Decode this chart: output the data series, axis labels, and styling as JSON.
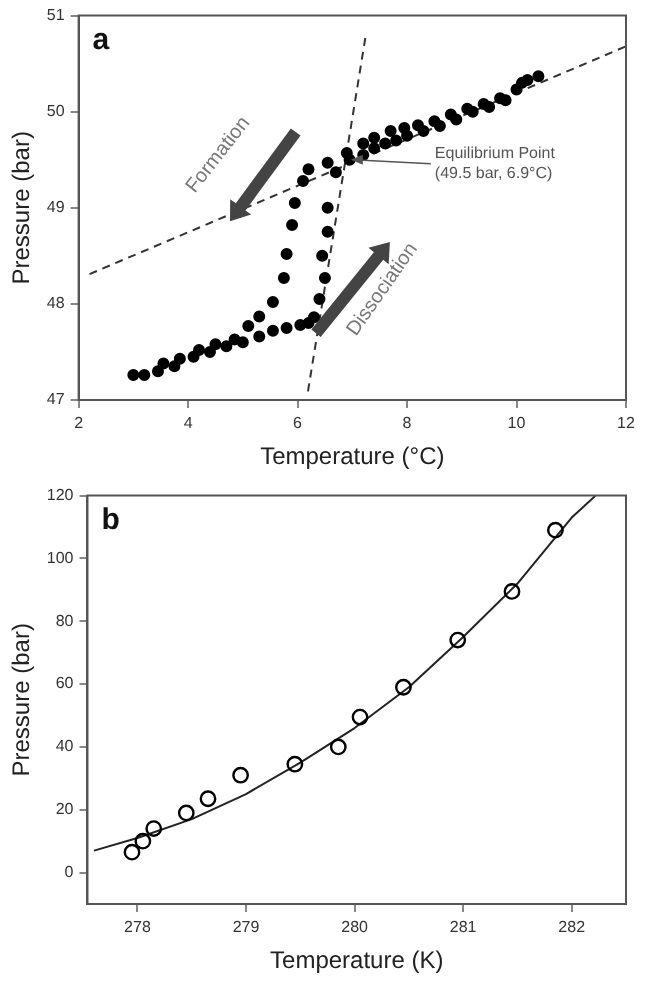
{
  "chart_data": [
    {
      "type": "scatter",
      "title": "a",
      "xlabel": "Temperature (°C)",
      "ylabel": "Pressure (bar)",
      "xlim": [
        2,
        12
      ],
      "ylim": [
        47,
        51
      ],
      "xticks": [
        2,
        4,
        6,
        8,
        10,
        12
      ],
      "yticks": [
        47,
        48,
        49,
        50,
        51
      ],
      "grid": false,
      "legend": false,
      "marker": "circle",
      "series": [
        {
          "color": "#000000",
          "x": [
            3.0,
            3.2,
            3.45,
            3.55,
            3.75,
            3.85,
            4.1,
            4.2,
            4.4,
            4.5,
            4.7,
            4.85,
            5.0,
            5.1,
            5.3,
            5.3,
            5.55,
            5.55,
            5.8,
            5.75,
            5.8,
            5.9,
            5.95,
            6.1,
            6.2,
            6.05,
            6.2,
            6.3,
            6.4,
            6.5,
            6.45,
            6.55,
            6.55,
            6.7,
            6.55,
            6.9,
            6.95,
            7.2,
            7.2,
            7.4,
            7.4,
            7.6,
            7.7,
            7.8,
            7.95,
            8.0,
            8.2,
            8.3,
            8.5,
            8.6,
            8.8,
            8.9,
            9.1,
            9.2,
            9.4,
            9.5,
            9.7,
            9.8,
            10.0,
            10.1,
            10.2,
            10.4
          ],
          "values": [
            47.26,
            47.26,
            47.3,
            47.38,
            47.35,
            47.43,
            47.45,
            47.52,
            47.5,
            47.58,
            47.56,
            47.63,
            47.6,
            47.77,
            47.66,
            47.87,
            47.72,
            48.02,
            47.75,
            48.27,
            48.52,
            48.82,
            49.05,
            49.28,
            49.4,
            47.78,
            47.8,
            47.86,
            48.05,
            48.27,
            48.5,
            48.75,
            49.0,
            49.37,
            49.47,
            49.57,
            49.5,
            49.55,
            49.67,
            49.62,
            49.73,
            49.67,
            49.8,
            49.7,
            49.83,
            49.75,
            49.86,
            49.8,
            49.9,
            49.85,
            49.97,
            49.92,
            50.03,
            50.0,
            50.08,
            50.05,
            50.14,
            50.12,
            50.23,
            50.3,
            50.33,
            50.37
          ]
        },
        {
          "type": "line",
          "marker": "none",
          "line_style": "dashed",
          "color": "#333333",
          "x": [
            2.2,
            12
          ],
          "values": [
            48.31,
            50.68
          ]
        },
        {
          "type": "line",
          "marker": "none",
          "line_style": "dashed",
          "color": "#333333",
          "x": [
            6.19,
            7.25
          ],
          "values": [
            47.09,
            50.81
          ]
        }
      ],
      "annotations": [
        "Formation",
        "Dissociation",
        {
          "text": "Equilibrium Point\n(49.5 bar, 6.9°C)",
          "x": 6.9,
          "y": 49.5
        }
      ]
    },
    {
      "type": "scatter",
      "title": "b",
      "xlabel": "Temperature (K)",
      "ylabel": "Pressure (bar)",
      "xlim": [
        277.54,
        282.5
      ],
      "ylim": [
        -10,
        120
      ],
      "xticks": [
        278,
        279,
        280,
        281,
        282
      ],
      "yticks": [
        0,
        20,
        40,
        60,
        80,
        100,
        120
      ],
      "grid": false,
      "legend": false,
      "marker": "circle",
      "series": [
        {
          "color": "#000000",
          "x": [
            277.95,
            278.05,
            278.15,
            278.45,
            278.65,
            278.95,
            279.45,
            279.85,
            280.05,
            280.45,
            280.95,
            281.45,
            281.85
          ],
          "values": [
            6.5,
            10,
            14,
            19,
            23.5,
            31,
            34.5,
            40,
            49.5,
            59,
            74,
            89.5,
            109
          ]
        },
        {
          "type": "line",
          "marker": "none",
          "line_style": "solid",
          "color": "#222222",
          "x": [
            277.6,
            278,
            278.5,
            279,
            279.5,
            280,
            280.5,
            281,
            281.5,
            282,
            282.22
          ],
          "values": [
            7,
            11,
            17,
            25,
            35,
            46,
            59,
            75,
            92,
            113,
            120
          ]
        }
      ]
    }
  ]
}
